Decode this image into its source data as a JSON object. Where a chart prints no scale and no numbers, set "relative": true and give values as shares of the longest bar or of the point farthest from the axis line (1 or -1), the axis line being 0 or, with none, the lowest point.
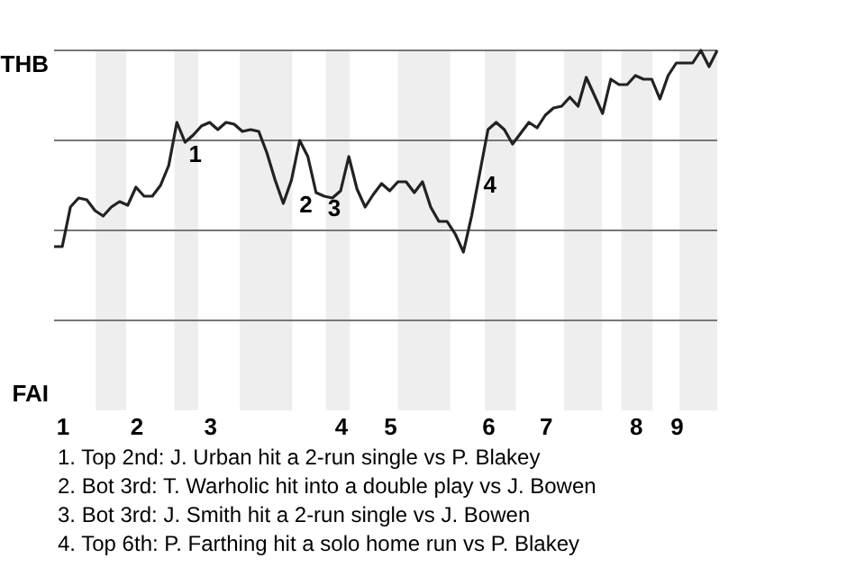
{
  "chart_data": {
    "type": "line",
    "color": "#222222",
    "relative": true,
    "ref_lines": [
      {
        "axis": "y",
        "value": 1,
        "color": "#777777"
      },
      {
        "axis": "y",
        "value": 0.5,
        "color": "#777777"
      },
      {
        "axis": "y",
        "value": 0,
        "color": "#777777"
      },
      {
        "axis": "y",
        "value": -0.5,
        "color": "#777777"
      }
    ],
    "categories": [
      null,
      "1",
      null,
      null,
      null,
      null,
      null,
      null,
      null,
      null,
      "2",
      null,
      null,
      null,
      null,
      null,
      null,
      null,
      null,
      "3",
      null,
      null,
      null,
      null,
      null,
      null,
      null,
      null,
      null,
      null,
      null,
      null,
      null,
      null,
      null,
      "4",
      null,
      null,
      null,
      null,
      null,
      "5",
      null,
      null,
      null,
      null,
      null,
      null,
      null,
      null,
      null,
      null,
      null,
      "6",
      null,
      null,
      null,
      null,
      null,
      null,
      "7",
      null,
      null,
      null,
      null,
      null,
      null,
      null,
      null,
      null,
      null,
      "8",
      null,
      null,
      null,
      null,
      "9",
      null,
      null,
      null,
      null,
      null
    ],
    "values": [
      -0.09,
      -0.09,
      0.13,
      0.18,
      0.17,
      0.11,
      0.08,
      0.13,
      0.16,
      0.14,
      0.24,
      0.19,
      0.19,
      0.25,
      0.36,
      0.6,
      0.49,
      0.53,
      0.58,
      0.6,
      0.56,
      0.6,
      0.59,
      0.55,
      0.56,
      0.55,
      0.43,
      0.28,
      0.15,
      0.28,
      0.5,
      0.41,
      0.21,
      0.19,
      0.18,
      0.22,
      0.41,
      0.23,
      0.13,
      0.2,
      0.26,
      0.22,
      0.27,
      0.27,
      0.21,
      0.27,
      0.13,
      0.05,
      0.05,
      -0.02,
      -0.12,
      0.08,
      0.32,
      0.56,
      0.6,
      0.56,
      0.48,
      0.54,
      0.6,
      0.57,
      0.64,
      0.68,
      0.69,
      0.74,
      0.69,
      0.85,
      0.75,
      0.65,
      0.84,
      0.81,
      0.81,
      0.86,
      0.84,
      0.84,
      0.73,
      0.86,
      0.93,
      0.93,
      0.93,
      1,
      0.91,
      1
    ],
    "annotations": [
      "THB",
      "FAI",
      {
        "text": "1",
        "y": 0.49
      },
      {
        "text": "2",
        "y": 0.21
      },
      {
        "text": "3",
        "y": 0.19
      },
      {
        "text": "4",
        "y": 0.32
      },
      "1. Top 2nd: J. Urban hit a 2-run single vs P. Blakey",
      "2. Bot 3rd: T. Warholic hit into a double play vs J. Bowen",
      "3. Bot 3rd: J. Smith hit a 2-run single vs J. Bowen",
      "4. Top 6th: P. Farthing hit a solo home run vs P. Blakey"
    ]
  }
}
